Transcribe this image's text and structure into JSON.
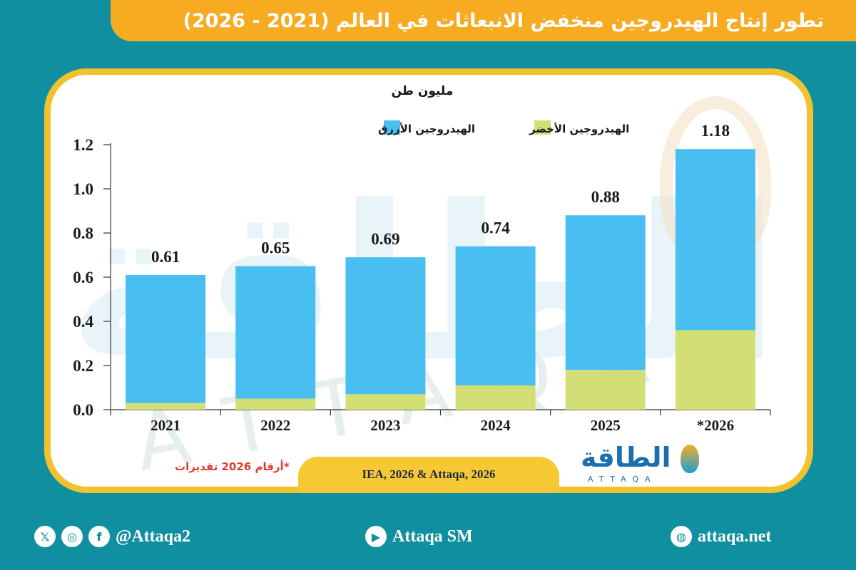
{
  "title": "تطور إنتاج الهيدروجين منخفض الانبعاثات في العالم (2021 - 2026)",
  "chart_data": {
    "type": "bar",
    "stacked": true,
    "unit_label": "مليون طن",
    "categories": [
      "2021",
      "2022",
      "2023",
      "2024",
      "2025",
      "*2026"
    ],
    "series": [
      {
        "name": "الهيدروجين الأخضر",
        "color": "#d3df74",
        "values": [
          0.03,
          0.05,
          0.07,
          0.11,
          0.18,
          0.36
        ]
      },
      {
        "name": "الهيدروجين الأزرق",
        "color": "#48bff0",
        "values": [
          0.58,
          0.6,
          0.62,
          0.63,
          0.7,
          0.82
        ]
      }
    ],
    "totals": [
      "0.61",
      "0.65",
      "0.69",
      "0.74",
      "0.88",
      "1.18"
    ],
    "yticks": [
      "0.0",
      "0.2",
      "0.4",
      "0.6",
      "0.8",
      "1.0",
      "1.2"
    ],
    "ylim": [
      0,
      1.2
    ],
    "legend_position": "top"
  },
  "note": "*أرقام 2026 تقديرات",
  "source": "IEA, 2026 & Attaqa, 2026",
  "logo": {
    "arabic": "الطاقة",
    "english": "ATTAQA"
  },
  "watermark": {
    "arabic": "الطاقة",
    "english": "ATTAQA"
  },
  "footer": {
    "social_handle": "@Attaqa2",
    "social_icons": [
      "x-icon",
      "instagram-icon",
      "facebook-icon"
    ],
    "youtube_label": "Attaqa SM",
    "website": "attaqa.net"
  }
}
